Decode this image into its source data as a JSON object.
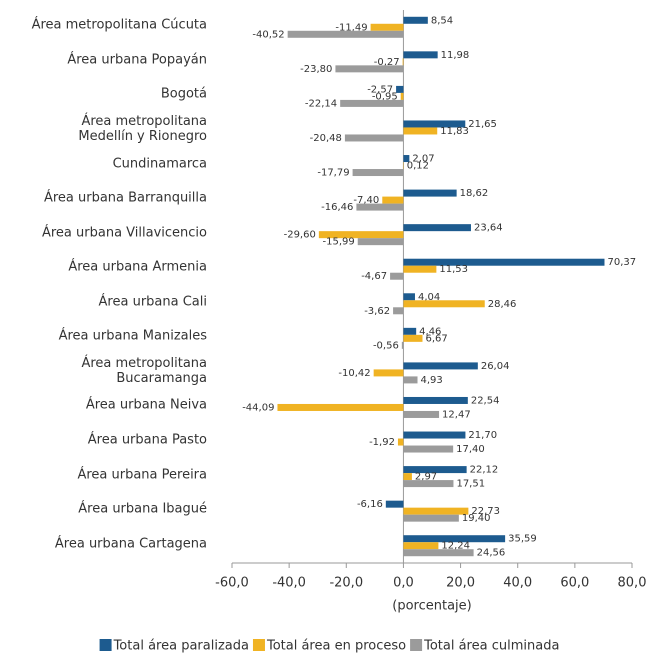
{
  "chart_data": {
    "type": "bar",
    "orientation": "horizontal",
    "categories": [
      "Área metropolitana Cúcuta",
      "Área urbana Popayán",
      "Bogotá",
      "Área metropolitana\nMedellín y Rionegro",
      "Cundinamarca",
      "Área urbana Barranquilla",
      "Área urbana Villavicencio",
      "Área urbana Armenia",
      "Área urbana Cali",
      "Área urbana Manizales",
      "Área metropolitana\nBucaramanga",
      "Área urbana Neiva",
      "Área urbana Pasto",
      "Área urbana Pereira",
      "Área urbana Ibagué",
      "Área urbana Cartagena"
    ],
    "series": [
      {
        "name": "Total área paralizada",
        "color": "#1d5b8f",
        "values": [
          8.54,
          11.98,
          -2.57,
          21.65,
          2.07,
          18.62,
          23.64,
          70.37,
          4.04,
          4.46,
          26.04,
          22.54,
          21.7,
          22.12,
          -6.16,
          35.59
        ],
        "value_labels": [
          "8,54",
          "11,98",
          "-2,57",
          "21,65",
          "2,07",
          "18,62",
          "23,64",
          "70,37",
          "4,04",
          "4,46",
          "26,04",
          "22,54",
          "21,70",
          "22,12",
          "-6,16",
          "35,59"
        ]
      },
      {
        "name": "Total área en proceso",
        "color": "#f0b323",
        "values": [
          -11.49,
          -0.27,
          -0.95,
          11.83,
          0.12,
          -7.4,
          -29.6,
          11.53,
          28.46,
          6.67,
          -10.42,
          -44.09,
          -1.92,
          2.97,
          22.73,
          12.24
        ],
        "value_labels": [
          "-11,49",
          "-0,27",
          "-0,95",
          "11,83",
          "0,12",
          "-7,40",
          "-29,60",
          "11,53",
          "28,46",
          "6,67",
          "-10,42",
          "-44,09",
          "-1,92",
          "2,97",
          "22,73",
          "12,24"
        ]
      },
      {
        "name": "Total área culminada",
        "color": "#9b9b9b",
        "values": [
          -40.52,
          -23.8,
          -22.14,
          -20.48,
          -17.79,
          -16.46,
          -15.99,
          -4.67,
          -3.62,
          -0.56,
          4.93,
          12.47,
          17.4,
          17.51,
          19.4,
          24.56
        ],
        "value_labels": [
          "-40,52",
          "-23,80",
          "-22,14",
          "-20,48",
          "-17,79",
          "-16,46",
          "-15,99",
          "-4,67",
          "-3,62",
          "-0,56",
          "4,93",
          "12,47",
          "17,40",
          "17,51",
          "19,40",
          "24,56"
        ]
      }
    ],
    "xlabel": "(porcentaje)",
    "xlim": [
      -60,
      80
    ],
    "xticks": [
      {
        "value": -60,
        "label": "-60,0"
      },
      {
        "value": -40,
        "label": "-40,0"
      },
      {
        "value": -20,
        "label": "-20,0"
      },
      {
        "value": 0,
        "label": "0,0"
      },
      {
        "value": 20,
        "label": "20,0"
      },
      {
        "value": 40,
        "label": "40,0"
      },
      {
        "value": 60,
        "label": "60,0"
      },
      {
        "value": 80,
        "label": "80,0"
      }
    ],
    "grid": false,
    "legend": "bottom"
  }
}
